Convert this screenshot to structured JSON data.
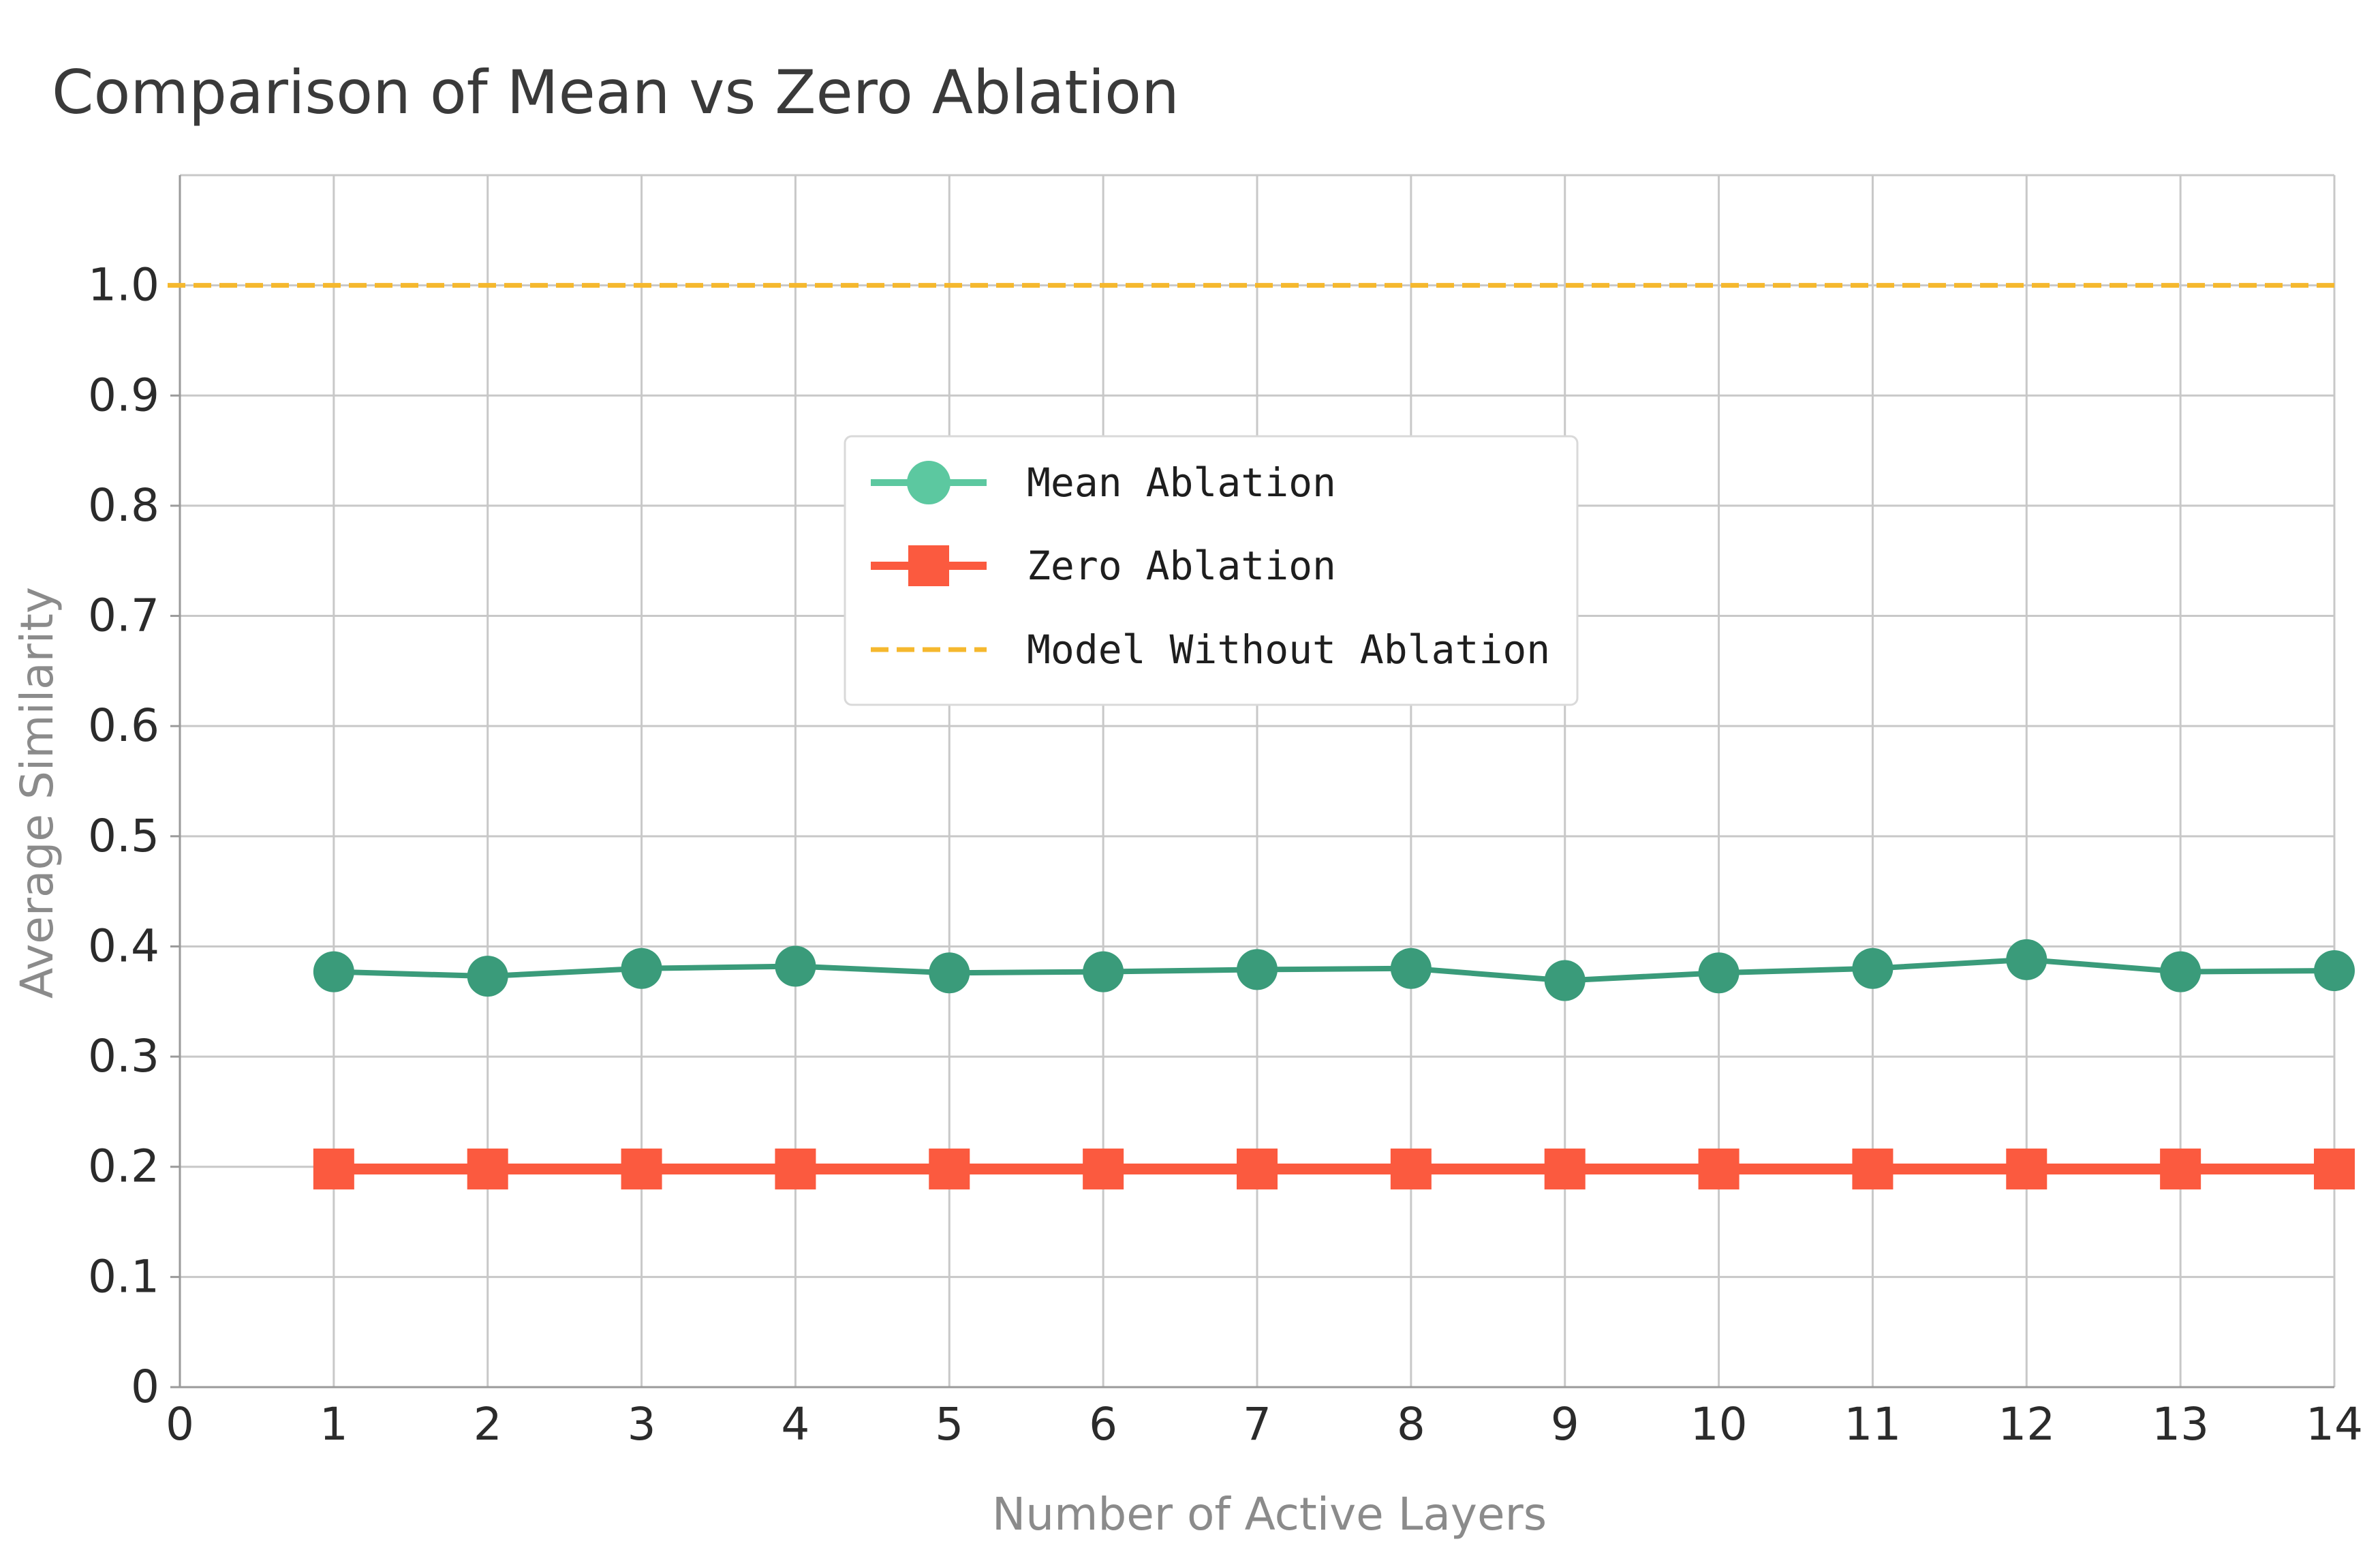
{
  "chart_data": {
    "type": "line",
    "title": "Comparison of Mean vs Zero Ablation",
    "xlabel": "Number of Active Layers",
    "ylabel": "Average Similarity",
    "xlim": [
      0,
      14
    ],
    "ylim": [
      0,
      1.1
    ],
    "x_ticks": [
      0,
      1,
      2,
      3,
      4,
      5,
      6,
      7,
      8,
      9,
      10,
      11,
      12,
      13,
      14
    ],
    "x_tick_labels": [
      "0",
      "1",
      "2",
      "3",
      "4",
      "5",
      "6",
      "7",
      "8",
      "9",
      "10",
      "11",
      "12",
      "13",
      "14"
    ],
    "y_ticks": [
      0,
      0.1,
      0.2,
      0.3,
      0.4,
      0.5,
      0.6,
      0.7,
      0.8,
      0.9,
      1.0
    ],
    "y_tick_labels": [
      "0",
      "0.1",
      "0.2",
      "0.3",
      "0.4",
      "0.5",
      "0.6",
      "0.7",
      "0.8",
      "0.9",
      "1.0"
    ],
    "grid": true,
    "legend_position": "upper-center",
    "x": [
      1,
      2,
      3,
      4,
      5,
      6,
      7,
      8,
      9,
      10,
      11,
      12,
      13,
      14
    ],
    "series": [
      {
        "name": "Mean Ablation",
        "marker": "circle",
        "color": "#3a9b7a",
        "legend_color": "#5cc8a0",
        "values": [
          0.377,
          0.373,
          0.38,
          0.382,
          0.376,
          0.377,
          0.379,
          0.38,
          0.369,
          0.376,
          0.38,
          0.388,
          0.377,
          0.378
        ]
      },
      {
        "name": "Zero Ablation",
        "marker": "square",
        "color": "#fb5a3f",
        "values": [
          0.198,
          0.198,
          0.198,
          0.198,
          0.198,
          0.198,
          0.198,
          0.198,
          0.198,
          0.198,
          0.198,
          0.198,
          0.198,
          0.198
        ]
      }
    ],
    "reference_lines": [
      {
        "name": "Model Without Ablation",
        "y": 1.0,
        "style": "dashed",
        "color": "#f5b82e"
      }
    ]
  }
}
